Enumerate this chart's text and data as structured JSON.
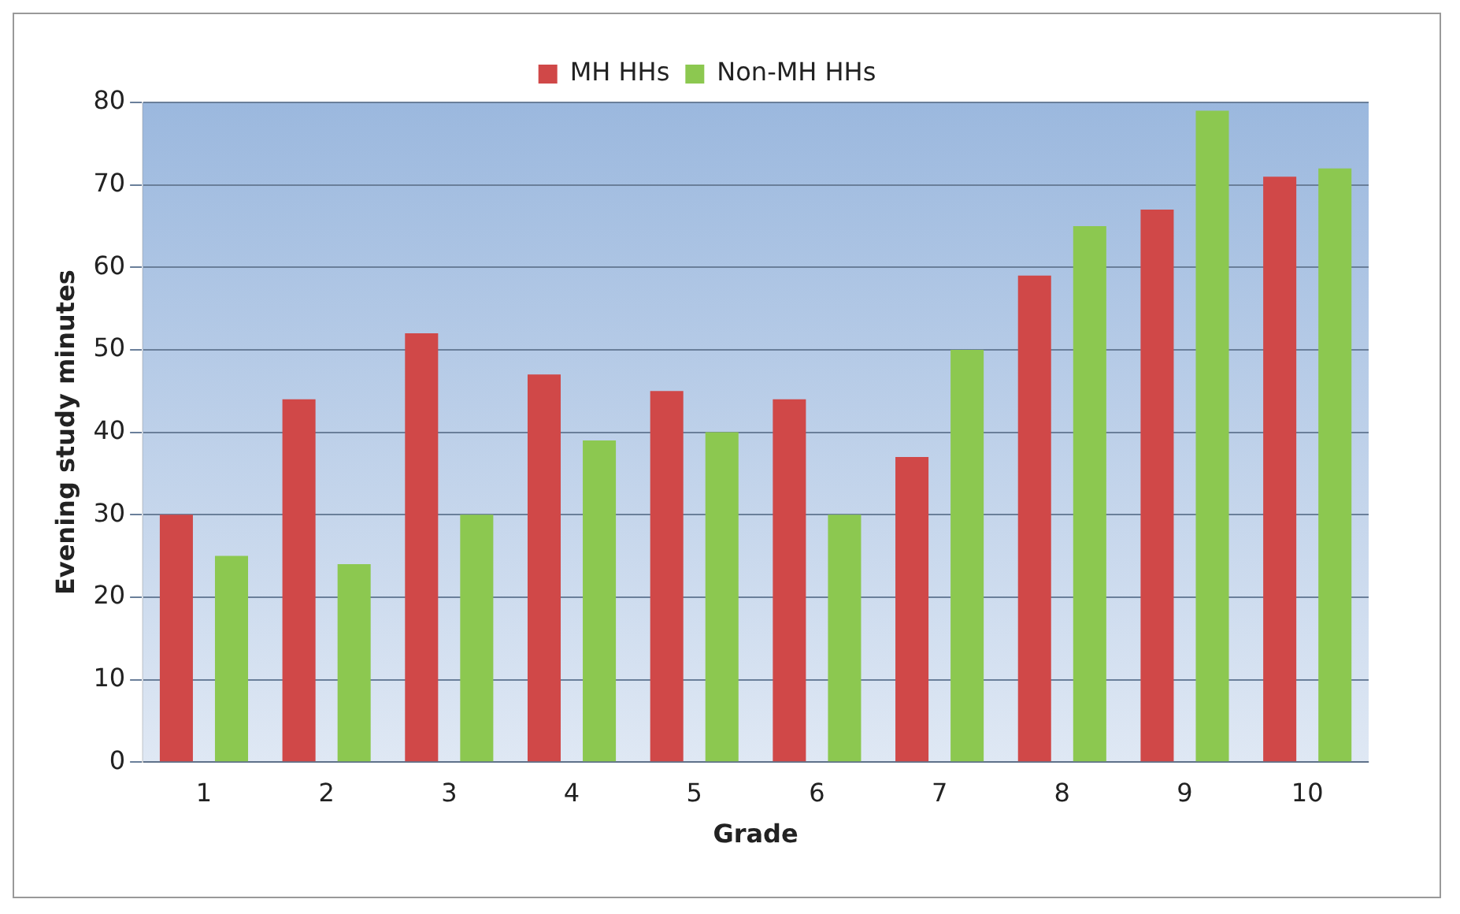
{
  "chart_data": {
    "type": "bar",
    "xlabel": "Grade",
    "ylabel": "Evening study minutes",
    "categories": [
      "1",
      "2",
      "3",
      "4",
      "5",
      "6",
      "7",
      "8",
      "9",
      "10"
    ],
    "series": [
      {
        "name": "MH HHs",
        "color": "#d04848",
        "values": [
          30,
          44,
          52,
          47,
          45,
          44,
          37,
          59,
          67,
          71
        ]
      },
      {
        "name": "Non-MH HHs",
        "color": "#8cc850",
        "values": [
          25,
          24,
          30,
          39,
          40,
          30,
          50,
          65,
          79,
          72
        ]
      }
    ],
    "ylim": [
      0,
      80
    ],
    "yticks": [
      0,
      10,
      20,
      30,
      40,
      50,
      60,
      70,
      80
    ],
    "grid": "y",
    "legend": "top"
  }
}
